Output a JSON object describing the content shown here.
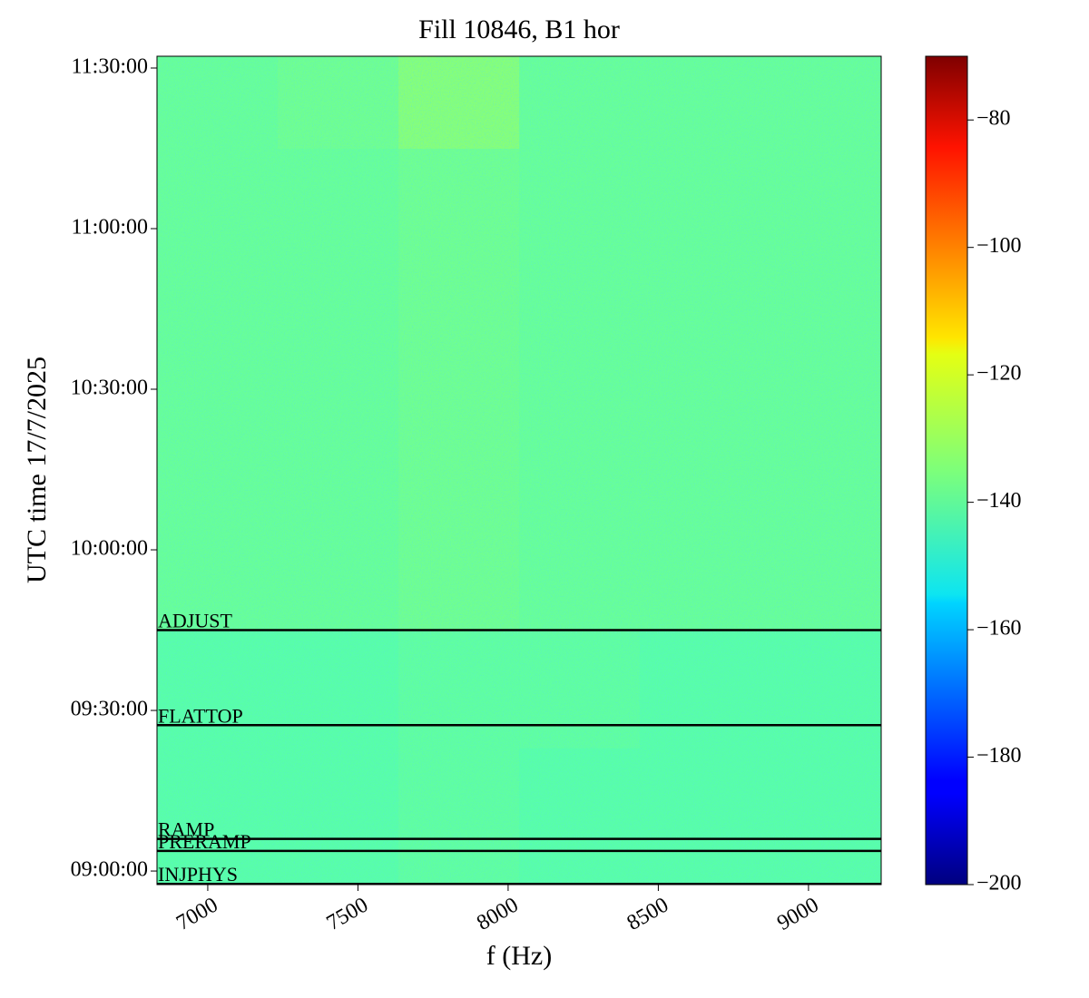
{
  "chart_data": {
    "type": "spectrogram",
    "title": "Fill 10846, B1 hor",
    "xlabel": "f (Hz)",
    "ylabel": "UTC time 17/7/2025",
    "xlim": [
      6831,
      9242
    ],
    "xticks": [
      7000,
      7500,
      8000,
      8500,
      9000
    ],
    "ylim": [
      "08:57:28",
      "11:32:12"
    ],
    "yticks": [
      "09:00:00",
      "09:30:00",
      "10:00:00",
      "10:30:00",
      "11:00:00",
      "11:30:00"
    ],
    "xbins": [
      6831,
      7233,
      7635,
      8037,
      8438,
      8840,
      9242
    ],
    "ybins": [
      "08:57:28",
      "09:23:00",
      "09:45:00",
      "10:15:00",
      "10:45:00",
      "11:15:00",
      "11:32:12"
    ],
    "z": [
      [
        -140,
        -140,
        -139,
        -140,
        -140,
        -140
      ],
      [
        -140,
        -140,
        -139,
        -139,
        -140,
        -140
      ],
      [
        -138,
        -138,
        -137,
        -138,
        -138,
        -138
      ],
      [
        -138,
        -138,
        -137,
        -138,
        -138,
        -138
      ],
      [
        -138,
        -138,
        -137,
        -138,
        -138,
        -138
      ],
      [
        -138,
        -137,
        -134,
        -138,
        -138,
        -138
      ]
    ],
    "clim": [
      -200,
      -70
    ],
    "cticks": [
      {
        "value": -200,
        "label": "−200"
      },
      {
        "value": -180,
        "label": "−180"
      },
      {
        "value": -160,
        "label": "−160"
      },
      {
        "value": -140,
        "label": "−140"
      },
      {
        "value": -120,
        "label": "−120"
      },
      {
        "value": -100,
        "label": "−100"
      },
      {
        "value": -80,
        "label": "−80"
      }
    ],
    "colormap": "jet",
    "annotations": [
      {
        "label": "ADJUST",
        "time": "09:45:00"
      },
      {
        "label": "FLATTOP",
        "time": "09:27:15"
      },
      {
        "label": "RAMP",
        "time": "09:06:00"
      },
      {
        "label": "PRERAMP",
        "time": "09:03:45"
      },
      {
        "label": "INJPHYS",
        "time": "08:57:36"
      }
    ]
  }
}
